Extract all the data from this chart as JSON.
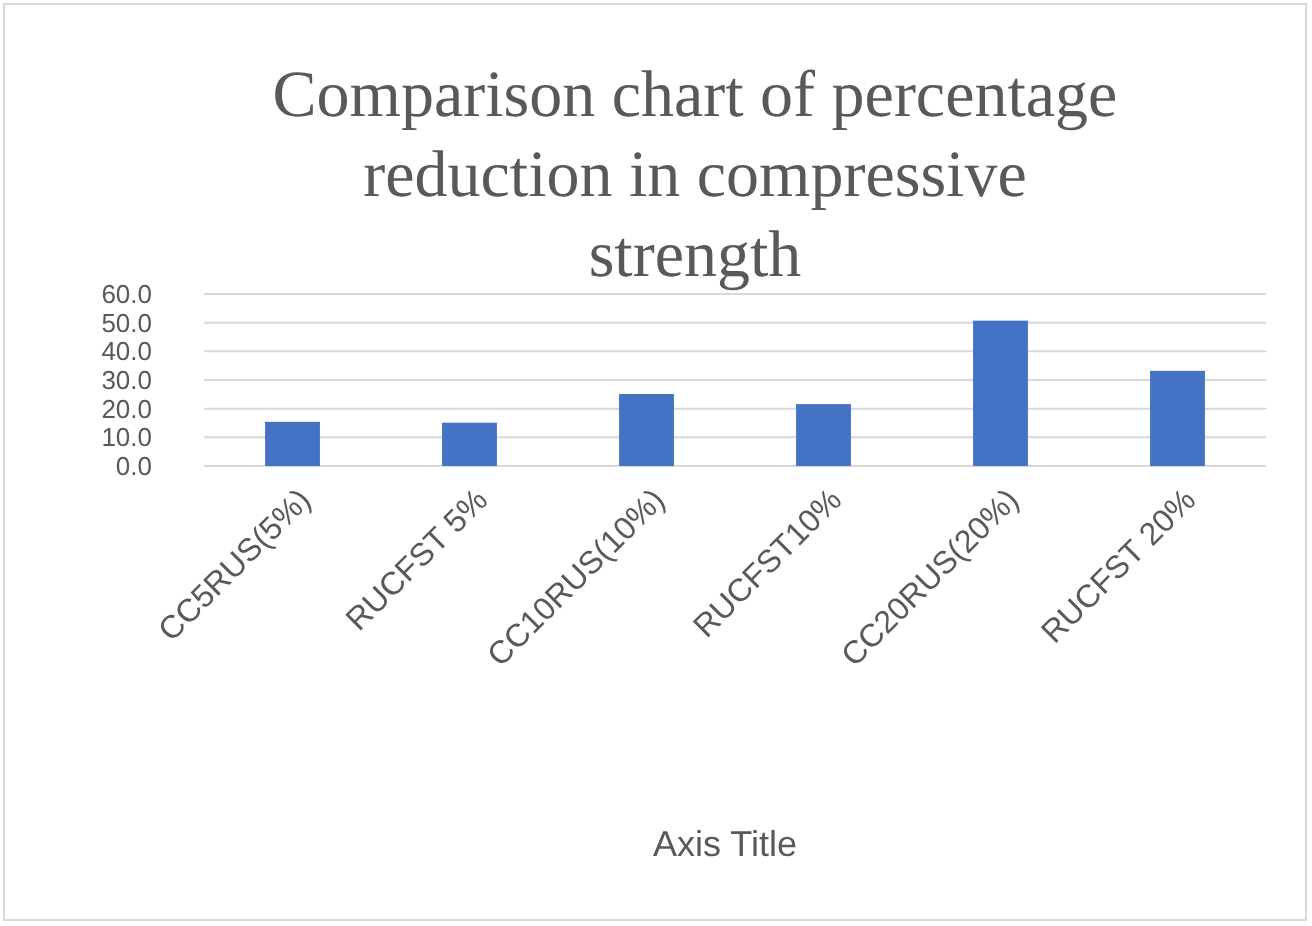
{
  "chart_data": {
    "type": "bar",
    "title": "Comparison chart of percentage reduction in compressive strength",
    "xlabel": "Axis Title",
    "categories": [
      "CC5RUS(5%)",
      "RUCFST 5%",
      "CC10RUS(10%)",
      "RUCFST10%",
      "CC20RUS(20%)",
      "RUCFST 20%"
    ],
    "values": [
      15.4,
      15.1,
      25.1,
      21.6,
      50.7,
      33.2
    ],
    "color": "#4472c4",
    "ylim": [
      0,
      60
    ],
    "yticks": [
      {
        "value": 0,
        "label": "0.0"
      },
      {
        "value": 10,
        "label": "10.0"
      },
      {
        "value": 20,
        "label": "20.0"
      },
      {
        "value": 30,
        "label": "30.0"
      },
      {
        "value": 40,
        "label": "40.0"
      },
      {
        "value": 50,
        "label": "50.0"
      },
      {
        "value": 60,
        "label": "60.0"
      }
    ],
    "grid": true
  }
}
